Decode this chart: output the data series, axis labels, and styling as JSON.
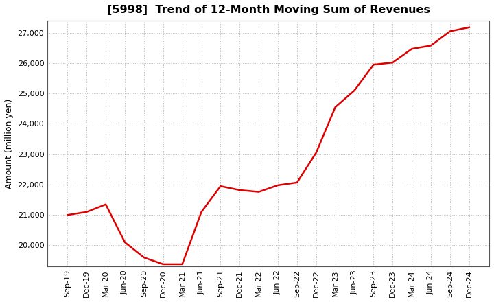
{
  "title": "[5998]  Trend of 12-Month Moving Sum of Revenues",
  "ylabel": "Amount (million yen)",
  "line_color": "#dd0000",
  "background_color": "#ffffff",
  "grid_color": "#aaaaaa",
  "x_labels": [
    "Sep-19",
    "Dec-19",
    "Mar-20",
    "Jun-20",
    "Sep-20",
    "Dec-20",
    "Mar-21",
    "Jun-21",
    "Sep-21",
    "Dec-21",
    "Mar-22",
    "Jun-22",
    "Sep-22",
    "Dec-22",
    "Mar-23",
    "Jun-23",
    "Sep-23",
    "Dec-23",
    "Mar-24",
    "Jun-24",
    "Sep-24",
    "Dec-24"
  ],
  "y_values": [
    21000,
    21100,
    21350,
    20100,
    19600,
    19380,
    19380,
    21100,
    21950,
    21820,
    21760,
    21980,
    22070,
    23050,
    24550,
    25100,
    25950,
    26020,
    26470,
    26580,
    27050,
    27180
  ],
  "ylim": [
    19300,
    27400
  ],
  "yticks": [
    20000,
    21000,
    22000,
    23000,
    24000,
    25000,
    26000,
    27000
  ]
}
